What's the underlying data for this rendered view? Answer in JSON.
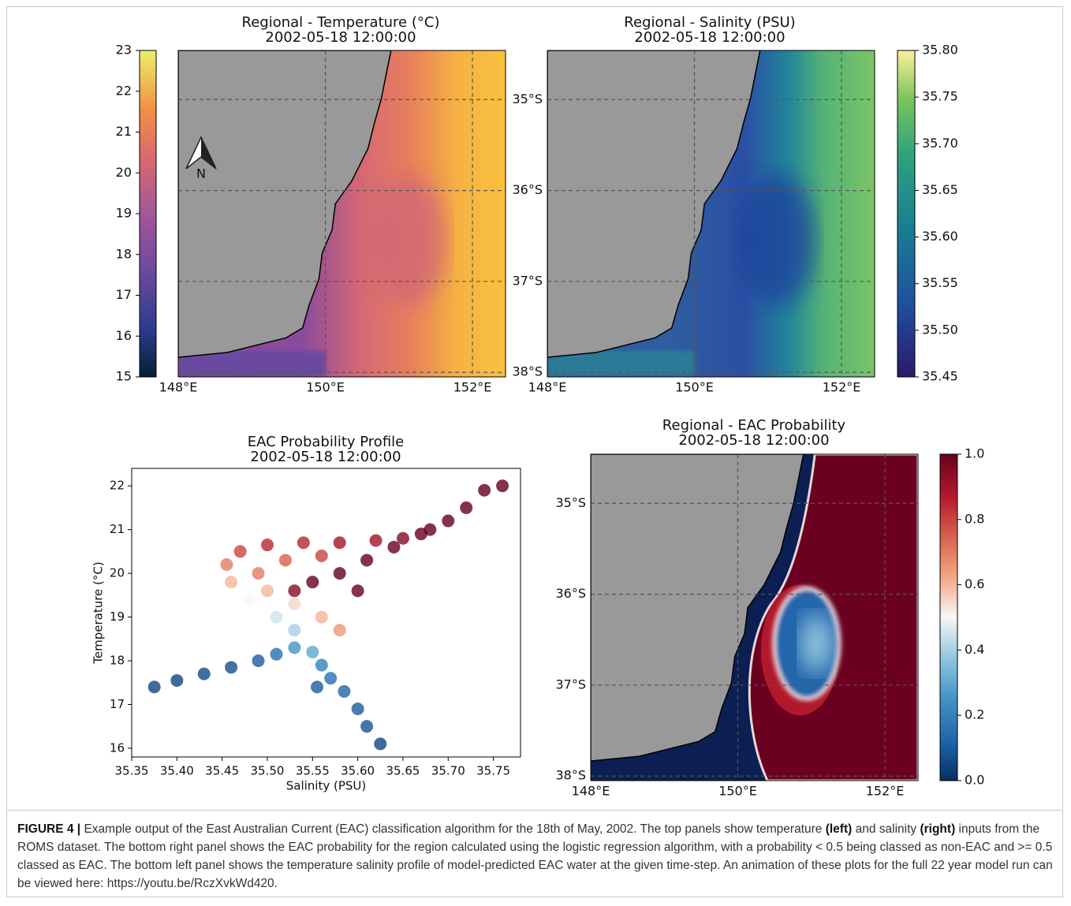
{
  "chart_data": [
    {
      "type": "map",
      "title": "Regional - Temperature (°C)",
      "subtitle": "2002-05-18 12:00:00",
      "compass_label": "N",
      "xlim": [
        148,
        152.45
      ],
      "ylim": [
        -38.05,
        -34.46
      ],
      "xticks": [
        {
          "value": 148,
          "label": "148°E"
        },
        {
          "value": 150,
          "label": "150°E"
        },
        {
          "value": 152,
          "label": "152°E"
        }
      ],
      "yticks": [
        -35,
        -36,
        -37,
        -38
      ],
      "show_ylabels": false,
      "grid": true,
      "colorbar": {
        "clim": [
          15,
          23
        ],
        "ticks": [
          15,
          16,
          17,
          18,
          19,
          20,
          21,
          22,
          23
        ]
      }
    },
    {
      "type": "map",
      "title": "Regional - Salinity (PSU)",
      "subtitle": "2002-05-18 12:00:00",
      "xlim": [
        148,
        152.45
      ],
      "ylim": [
        -38.05,
        -34.46
      ],
      "xticks": [
        {
          "value": 148,
          "label": "148°E"
        },
        {
          "value": 150,
          "label": "150°E"
        },
        {
          "value": 152,
          "label": "152°E"
        }
      ],
      "yticks": [
        {
          "value": -35,
          "label": "35°S"
        },
        {
          "value": -36,
          "label": "36°S"
        },
        {
          "value": -37,
          "label": "37°S"
        },
        {
          "value": -38,
          "label": "38°S"
        }
      ],
      "show_ylabels": true,
      "grid": true,
      "colorbar": {
        "clim": [
          35.45,
          35.8
        ],
        "ticks": [
          {
            "value": 35.45,
            "label": "35.45"
          },
          {
            "value": 35.5,
            "label": "35.50"
          },
          35.55,
          {
            "value": 35.6,
            "label": "35.60"
          },
          35.65,
          {
            "value": 35.7,
            "label": "35.70"
          },
          35.75,
          {
            "value": 35.8,
            "label": "35.80"
          }
        ]
      }
    },
    {
      "type": "scatter",
      "title": "EAC Probability Profile",
      "subtitle": "2002-05-18 12:00:00",
      "x_label": "Salinity (PSU)",
      "y_label": "Temperature (°C)",
      "xlim": [
        35.35,
        35.78
      ],
      "ylim": [
        15.8,
        22.4
      ],
      "xticks": [
        35.35,
        {
          "value": 35.4,
          "label": "35.40"
        },
        35.45,
        {
          "value": 35.5,
          "label": "35.50"
        },
        35.55,
        {
          "value": 35.6,
          "label": "35.60"
        },
        35.65,
        {
          "value": 35.7,
          "label": "35.70"
        },
        35.75
      ],
      "yticks": [
        16,
        17,
        18,
        19,
        20,
        21,
        22
      ],
      "x": [
        35.375,
        35.4,
        35.43,
        35.46,
        35.49,
        35.51,
        35.53,
        35.55,
        35.56,
        35.57,
        35.585,
        35.6,
        35.61,
        35.625,
        35.555,
        35.53,
        35.51,
        35.48,
        35.46,
        35.455,
        35.47,
        35.5,
        35.54,
        35.58,
        35.62,
        35.65,
        35.49,
        35.52,
        35.56,
        35.5,
        35.53,
        35.56,
        35.58,
        35.55,
        35.58,
        35.61,
        35.64,
        35.67,
        35.7,
        35.72,
        35.74,
        35.76,
        35.53,
        35.6,
        35.68
      ],
      "y": [
        17.4,
        17.55,
        17.7,
        17.85,
        18.0,
        18.15,
        18.3,
        18.2,
        17.9,
        17.6,
        17.3,
        16.9,
        16.5,
        16.1,
        17.4,
        18.7,
        19.0,
        19.4,
        19.8,
        20.2,
        20.5,
        20.65,
        20.7,
        20.7,
        20.75,
        20.8,
        20.0,
        20.3,
        20.4,
        19.6,
        19.3,
        19.0,
        18.7,
        19.8,
        20.0,
        20.3,
        20.6,
        20.9,
        21.2,
        21.5,
        21.9,
        22.0,
        19.6,
        19.6,
        21.0
      ],
      "probability": [
        0.05,
        0.05,
        0.06,
        0.07,
        0.1,
        0.15,
        0.25,
        0.3,
        0.2,
        0.15,
        0.12,
        0.1,
        0.08,
        0.05,
        0.1,
        0.4,
        0.45,
        0.5,
        0.6,
        0.7,
        0.8,
        0.85,
        0.85,
        0.9,
        0.9,
        0.95,
        0.7,
        0.75,
        0.8,
        0.6,
        0.55,
        0.6,
        0.65,
        1.0,
        1.0,
        1.0,
        1.0,
        1.0,
        1.0,
        1.0,
        1.0,
        1.0,
        0.95,
        1.0,
        1.0
      ]
    },
    {
      "type": "map",
      "title": "Regional - EAC Probability",
      "subtitle": "2002-05-18 12:00:00",
      "xlim": [
        148,
        152.45
      ],
      "ylim": [
        -38.05,
        -34.46
      ],
      "xticks": [
        {
          "value": 148,
          "label": "148°E"
        },
        {
          "value": 150,
          "label": "150°E"
        },
        {
          "value": 152,
          "label": "152°E"
        }
      ],
      "yticks": [
        {
          "value": -35,
          "label": "35°S"
        },
        {
          "value": -36,
          "label": "36°S"
        },
        {
          "value": -37,
          "label": "37°S"
        },
        {
          "value": -38,
          "label": "38°S"
        }
      ],
      "show_ylabels": true,
      "grid": true,
      "colorbar": {
        "clim": [
          0,
          1
        ],
        "ticks": [
          {
            "value": 0,
            "label": "0.0"
          },
          0.2,
          0.4,
          0.6,
          0.8,
          {
            "value": 1,
            "label": "1.0"
          }
        ]
      }
    }
  ],
  "caption": {
    "label": "FIGURE 4 |",
    "text_1": "Example output of the East Australian Current (EAC) classification algorithm for the 18th of May, 2002. The top panels show temperature",
    "bold_1": "(left)",
    "text_2": "and salinity",
    "bold_2": "(right)",
    "text_3": "inputs from the ROMS dataset. The bottom right panel shows the EAC probability for the region calculated using the logistic regression algorithm, with a probability < 0.5 being classed as non-EAC and >= 0.5 classed as EAC. The bottom left panel shows the temperature salinity profile of model-predicted EAC water at the given time-step. An animation of these plots for the full 22 year model run can be viewed here: https://youtu.be/RczXvkWd420."
  }
}
